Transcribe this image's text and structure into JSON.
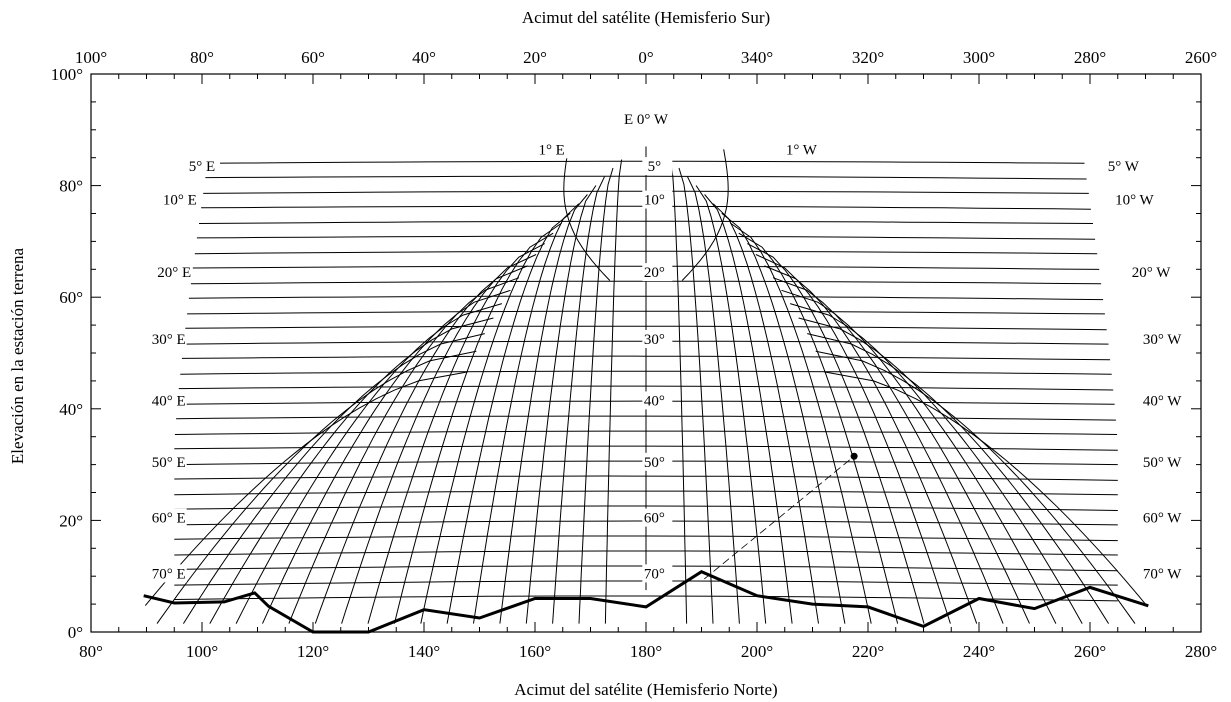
{
  "chart_data": {
    "type": "line",
    "xlabel_bottom": "Acimut del satélite (Hemisferio Norte)",
    "xlabel_top": "Acimut del satélite (Hemisferio Sur)",
    "ylabel": "Elevación en la estación terrena",
    "x_range": [
      80,
      280
    ],
    "y_range": [
      0,
      100
    ],
    "x_ticks_bottom": [
      {
        "v": 80,
        "label": "80°"
      },
      {
        "v": 100,
        "label": "100°"
      },
      {
        "v": 120,
        "label": "120°"
      },
      {
        "v": 140,
        "label": "140°"
      },
      {
        "v": 160,
        "label": "160°"
      },
      {
        "v": 180,
        "label": "180°"
      },
      {
        "v": 200,
        "label": "200°"
      },
      {
        "v": 220,
        "label": "220°"
      },
      {
        "v": 240,
        "label": "240°"
      },
      {
        "v": 260,
        "label": "260°"
      },
      {
        "v": 280,
        "label": "280°"
      }
    ],
    "x_ticks_top": [
      {
        "v": 80,
        "label": "100°"
      },
      {
        "v": 100,
        "label": "80°"
      },
      {
        "v": 120,
        "label": "60°"
      },
      {
        "v": 140,
        "label": "40°"
      },
      {
        "v": 160,
        "label": "20°"
      },
      {
        "v": 180,
        "label": "0°"
      },
      {
        "v": 200,
        "label": "340°"
      },
      {
        "v": 220,
        "label": "320°"
      },
      {
        "v": 240,
        "label": "300°"
      },
      {
        "v": 260,
        "label": "280°"
      },
      {
        "v": 280,
        "label": "260°"
      }
    ],
    "y_ticks": [
      {
        "v": 0,
        "label": "0°"
      },
      {
        "v": 20,
        "label": "20°"
      },
      {
        "v": 40,
        "label": "40°"
      },
      {
        "v": 60,
        "label": "60°"
      },
      {
        "v": 80,
        "label": "80°"
      },
      {
        "v": 100,
        "label": "100°"
      }
    ],
    "center_label": "E 0° W",
    "longitude_labels": [
      {
        "label": "1° E",
        "x": 163,
        "y": 86.5
      },
      {
        "label": "5° E",
        "x": 100,
        "y": 83.5
      },
      {
        "label": "10° E",
        "x": 96,
        "y": 77.5
      },
      {
        "label": "20° E",
        "x": 95,
        "y": 64.5
      },
      {
        "label": "30° E",
        "x": 94,
        "y": 52.5
      },
      {
        "label": "40° E",
        "x": 94,
        "y": 41.5
      },
      {
        "label": "50° E",
        "x": 94,
        "y": 30.5
      },
      {
        "label": "60° E",
        "x": 94,
        "y": 20.5
      },
      {
        "label": "70° E",
        "x": 94,
        "y": 10.5
      },
      {
        "label": "1° W",
        "x": 208,
        "y": 86.5
      },
      {
        "label": "5° W",
        "x": 266,
        "y": 83.5
      },
      {
        "label": "10° W",
        "x": 268,
        "y": 77.5
      },
      {
        "label": "20° W",
        "x": 271,
        "y": 64.5
      },
      {
        "label": "30° W",
        "x": 273,
        "y": 52.5
      },
      {
        "label": "40° W",
        "x": 273,
        "y": 41.5
      },
      {
        "label": "50° W",
        "x": 273,
        "y": 30.5
      },
      {
        "label": "60° W",
        "x": 273,
        "y": 20.5
      },
      {
        "label": "70° W",
        "x": 273,
        "y": 10.5
      }
    ],
    "center_longitude_labels": [
      {
        "label": "5°",
        "x": 181.5,
        "y": 83.5
      },
      {
        "label": "10°",
        "x": 181.5,
        "y": 77.5
      },
      {
        "label": "20°",
        "x": 181.5,
        "y": 64.5
      },
      {
        "label": "30°",
        "x": 181.5,
        "y": 52.5
      },
      {
        "label": "40°",
        "x": 181.5,
        "y": 41.5
      },
      {
        "label": "50°",
        "x": 181.5,
        "y": 30.5
      },
      {
        "label": "60°",
        "x": 181.5,
        "y": 20.5
      },
      {
        "label": "70°",
        "x": 181.5,
        "y": 10.5
      }
    ],
    "latitude_offsets": [
      1,
      5,
      10,
      20,
      30,
      40,
      50,
      60,
      70
    ],
    "horizon_profile": [
      [
        89.5,
        6.5
      ],
      [
        95,
        5.2
      ],
      [
        104,
        5.4
      ],
      [
        109.5,
        7.0
      ],
      [
        112,
        4.6
      ],
      [
        120,
        0
      ],
      [
        130,
        0
      ],
      [
        140,
        4.0
      ],
      [
        150,
        2.5
      ],
      [
        160,
        6.0
      ],
      [
        170,
        6.0
      ],
      [
        180,
        4.5
      ],
      [
        190,
        10.8
      ],
      [
        200,
        6.5
      ],
      [
        210,
        5.0
      ],
      [
        220,
        4.5
      ],
      [
        230,
        1.0
      ],
      [
        240,
        6.0
      ],
      [
        250,
        4.2
      ],
      [
        260,
        8.0
      ],
      [
        270.5,
        4.7
      ]
    ],
    "marked_point": {
      "x": 217.5,
      "y": 31.5
    },
    "grid": false
  }
}
